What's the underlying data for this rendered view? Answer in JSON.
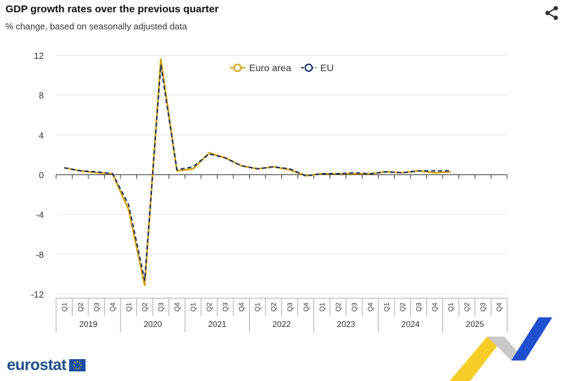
{
  "header": {
    "title": "GDP growth rates over the previous quarter",
    "subtitle": "% change, based on seasonally adjusted data"
  },
  "branding": {
    "logo_text": "eurostat"
  },
  "icons": {
    "share": "share-icon",
    "flag": "eu-flag-icon"
  },
  "chart_data": {
    "type": "line",
    "title": "GDP growth rates over the previous quarter",
    "subtitle": "% change, based on seasonally adjusted data",
    "ylim": [
      -12,
      12
    ],
    "yticks": [
      12,
      8,
      4,
      0,
      -4,
      -8,
      -12
    ],
    "grid": true,
    "legend_position": "top-center",
    "years": [
      "2019",
      "2020",
      "2021",
      "2022",
      "2023",
      "2024",
      "2025"
    ],
    "quarters": [
      "Q1",
      "Q2",
      "Q3",
      "Q4"
    ],
    "categories": [
      "2019 Q1",
      "2019 Q2",
      "2019 Q3",
      "2019 Q4",
      "2020 Q1",
      "2020 Q2",
      "2020 Q3",
      "2020 Q4",
      "2021 Q1",
      "2021 Q2",
      "2021 Q3",
      "2021 Q4",
      "2022 Q1",
      "2022 Q2",
      "2022 Q3",
      "2022 Q4",
      "2023 Q1",
      "2023 Q2",
      "2023 Q3",
      "2023 Q4",
      "2024 Q1",
      "2024 Q2",
      "2024 Q3",
      "2024 Q4",
      "2025 Q1",
      "2025 Q2",
      "2025 Q3",
      "2025 Q4"
    ],
    "series": [
      {
        "name": "Euro area",
        "color": "#d4a20a",
        "style": "solid",
        "values": [
          0.7,
          0.4,
          0.2,
          0.1,
          -3.5,
          -11.1,
          11.6,
          0.4,
          0.6,
          2.2,
          1.7,
          0.9,
          0.6,
          0.8,
          0.5,
          -0.1,
          0.1,
          0.1,
          0.1,
          0.1,
          0.3,
          0.2,
          0.4,
          0.2,
          0.3,
          null,
          null,
          null
        ]
      },
      {
        "name": "EU",
        "color": "#1a2f6b",
        "style": "dashed",
        "values": [
          0.7,
          0.4,
          0.3,
          0.1,
          -3.0,
          -10.6,
          11.0,
          0.5,
          0.8,
          2.1,
          1.7,
          0.9,
          0.6,
          0.8,
          0.6,
          -0.1,
          0.1,
          0.1,
          0.2,
          0.1,
          0.3,
          0.2,
          0.4,
          0.4,
          0.4,
          null,
          null,
          null
        ]
      }
    ]
  }
}
